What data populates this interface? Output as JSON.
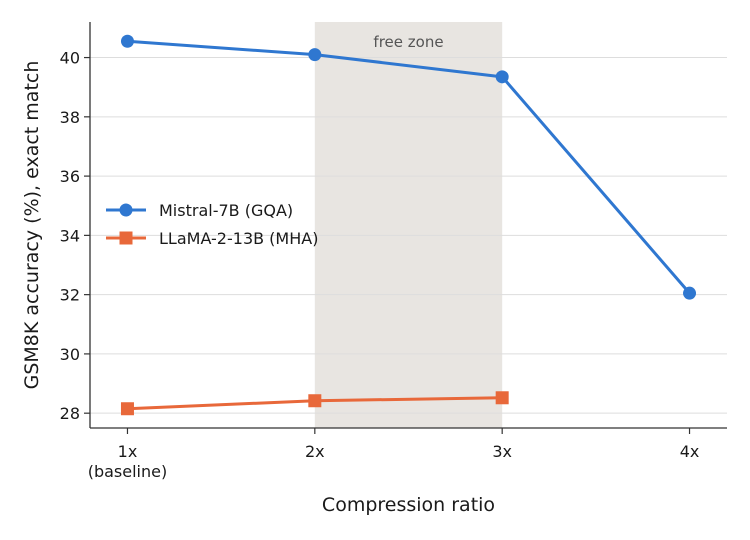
{
  "chart_data": {
    "type": "line",
    "xlabel": "Compression ratio",
    "ylabel": "GSM8K accuracy (%), exact match",
    "x": [
      1,
      2,
      3,
      4
    ],
    "xticks": [
      {
        "x": 1,
        "lines": [
          "1x",
          "(baseline)"
        ]
      },
      {
        "x": 2,
        "lines": [
          "2x"
        ]
      },
      {
        "x": 3,
        "lines": [
          "3x"
        ]
      },
      {
        "x": 4,
        "lines": [
          "4x"
        ]
      }
    ],
    "xlim": [
      0.8,
      4.2
    ],
    "ylim": [
      27.5,
      41.2
    ],
    "yticks": [
      28,
      30,
      32,
      34,
      36,
      38,
      40
    ],
    "grid": "horizontal",
    "legend": "left",
    "series": [
      {
        "name": "Mistral-7B (GQA)",
        "marker": "circle",
        "color": "#2f77d0",
        "x": [
          1,
          2,
          3,
          4
        ],
        "values": [
          40.55,
          40.1,
          39.35,
          32.05
        ]
      },
      {
        "name": "LLaMA-2-13B (MHA)",
        "marker": "square",
        "color": "#e8683a",
        "x": [
          1,
          2,
          3
        ],
        "values": [
          28.15,
          28.42,
          28.52
        ]
      }
    ],
    "annotations": [
      {
        "type": "span",
        "x_start": 2,
        "x_end": 3,
        "label": "free zone",
        "color": "#e4e1dc"
      }
    ]
  }
}
